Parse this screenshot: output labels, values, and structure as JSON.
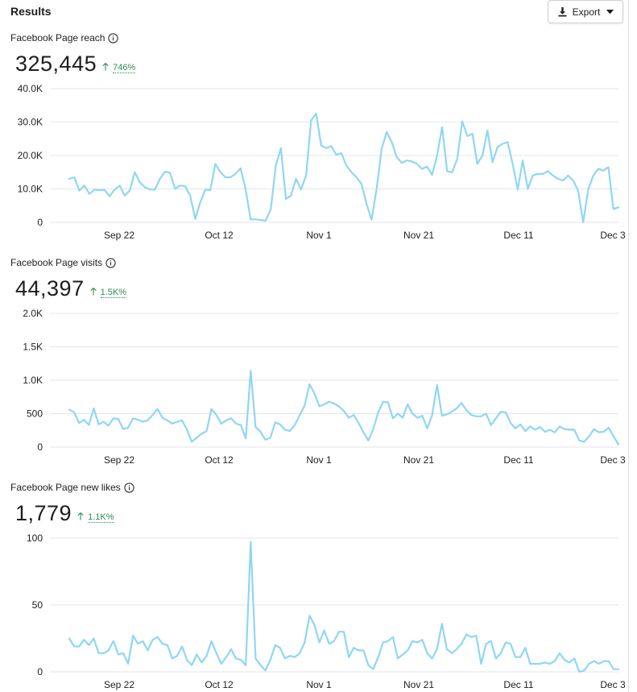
{
  "header": {
    "title": "Results",
    "export_label": "Export"
  },
  "colors": {
    "line": "#8fd6f5",
    "grid": "#e4e6eb",
    "delta": "#2e8b57"
  },
  "sections": [
    {
      "title": "Facebook Page reach",
      "value": "325,445",
      "delta": "746%"
    },
    {
      "title": "Facebook Page visits",
      "value": "44,397",
      "delta": "1.5K%"
    },
    {
      "title": "Facebook Page new likes",
      "value": "1,779",
      "delta": "1.1K%"
    }
  ],
  "chart_data": [
    {
      "type": "line",
      "title": "Facebook Page reach",
      "x_tick_labels": [
        "Sep 22",
        "Oct 12",
        "Nov 1",
        "Nov 21",
        "Dec 11",
        "Dec 3"
      ],
      "y_tick_labels": [
        "0",
        "10.0K",
        "20.0K",
        "30.0K",
        "40.0K"
      ],
      "ylim": [
        0,
        40000
      ],
      "grid": true,
      "values": [
        13000,
        13500,
        9500,
        11000,
        8500,
        9800,
        9600,
        9700,
        7800,
        9800,
        11000,
        8000,
        9500,
        15000,
        12000,
        10500,
        9800,
        9800,
        13000,
        15200,
        14800,
        10000,
        11000,
        10800,
        8000,
        1000,
        6000,
        9800,
        9600,
        17500,
        15000,
        13500,
        13500,
        14500,
        16200,
        9900,
        900,
        900,
        700,
        500,
        4000,
        17000,
        22200,
        7000,
        8000,
        13000,
        9800,
        14000,
        30500,
        32500,
        23000,
        22200,
        22800,
        20200,
        20700,
        17000,
        15000,
        13500,
        11500,
        5500,
        800,
        10000,
        22000,
        27000,
        24000,
        19500,
        17800,
        18500,
        18200,
        17500,
        16000,
        16700,
        14200,
        20000,
        28500,
        15300,
        15000,
        19000,
        30200,
        25800,
        26500,
        17500,
        20000,
        27500,
        18000,
        22500,
        23500,
        24000,
        17500,
        9800,
        18500,
        10000,
        14000,
        14500,
        14500,
        15300,
        14000,
        13000,
        12500,
        14000,
        12500,
        9500,
        0,
        9900,
        14000,
        16000,
        15500,
        16500,
        4000,
        4500
      ]
    },
    {
      "type": "line",
      "title": "Facebook Page visits",
      "x_tick_labels": [
        "Sep 22",
        "Oct 12",
        "Nov 1",
        "Nov 21",
        "Dec 11",
        "Dec 3"
      ],
      "y_tick_labels": [
        "0",
        "500",
        "1.0K",
        "1.5K",
        "2.0K"
      ],
      "ylim": [
        0,
        2000
      ],
      "grid": true,
      "values": [
        560,
        520,
        360,
        410,
        330,
        580,
        340,
        380,
        320,
        430,
        420,
        270,
        290,
        430,
        410,
        380,
        400,
        480,
        570,
        440,
        400,
        350,
        380,
        400,
        260,
        80,
        140,
        200,
        240,
        570,
        480,
        350,
        400,
        430,
        350,
        330,
        130,
        1140,
        300,
        230,
        110,
        140,
        370,
        340,
        260,
        240,
        330,
        480,
        620,
        940,
        800,
        610,
        640,
        680,
        650,
        610,
        540,
        440,
        480,
        360,
        220,
        100,
        270,
        520,
        680,
        670,
        430,
        500,
        440,
        640,
        500,
        440,
        470,
        280,
        480,
        930,
        470,
        490,
        530,
        580,
        660,
        550,
        480,
        460,
        460,
        500,
        330,
        430,
        530,
        520,
        360,
        280,
        340,
        240,
        310,
        260,
        300,
        230,
        260,
        220,
        310,
        270,
        260,
        260,
        100,
        80,
        160,
        270,
        220,
        230,
        290,
        160,
        40
      ]
    },
    {
      "type": "line",
      "title": "Facebook Page new likes",
      "x_tick_labels": [
        "Sep 22",
        "Oct 12",
        "Nov 1",
        "Nov 21",
        "Dec 11",
        "Dec 3"
      ],
      "y_tick_labels": [
        "0",
        "50",
        "100"
      ],
      "ylim": [
        0,
        100
      ],
      "grid": true,
      "values": [
        25,
        19,
        19,
        24,
        20,
        25,
        14,
        14,
        16,
        23,
        13,
        14,
        6,
        27,
        21,
        23,
        16,
        24,
        26,
        21,
        20,
        10,
        12,
        19,
        9,
        5,
        13,
        7,
        12,
        23,
        14,
        6,
        11,
        17,
        10,
        9,
        5,
        97,
        10,
        5,
        1,
        9,
        20,
        18,
        10,
        12,
        11,
        14,
        22,
        42,
        35,
        22,
        31,
        21,
        23,
        30,
        30,
        11,
        18,
        16,
        16,
        5,
        2,
        11,
        22,
        23,
        26,
        10,
        13,
        16,
        23,
        22,
        24,
        14,
        10,
        17,
        36,
        17,
        14,
        17,
        21,
        28,
        26,
        27,
        6,
        21,
        23,
        10,
        14,
        22,
        21,
        11,
        11,
        18,
        6,
        6,
        6,
        7,
        6,
        8,
        14,
        9,
        7,
        10,
        0,
        1,
        6,
        8,
        6,
        8,
        8,
        2,
        2
      ]
    }
  ]
}
